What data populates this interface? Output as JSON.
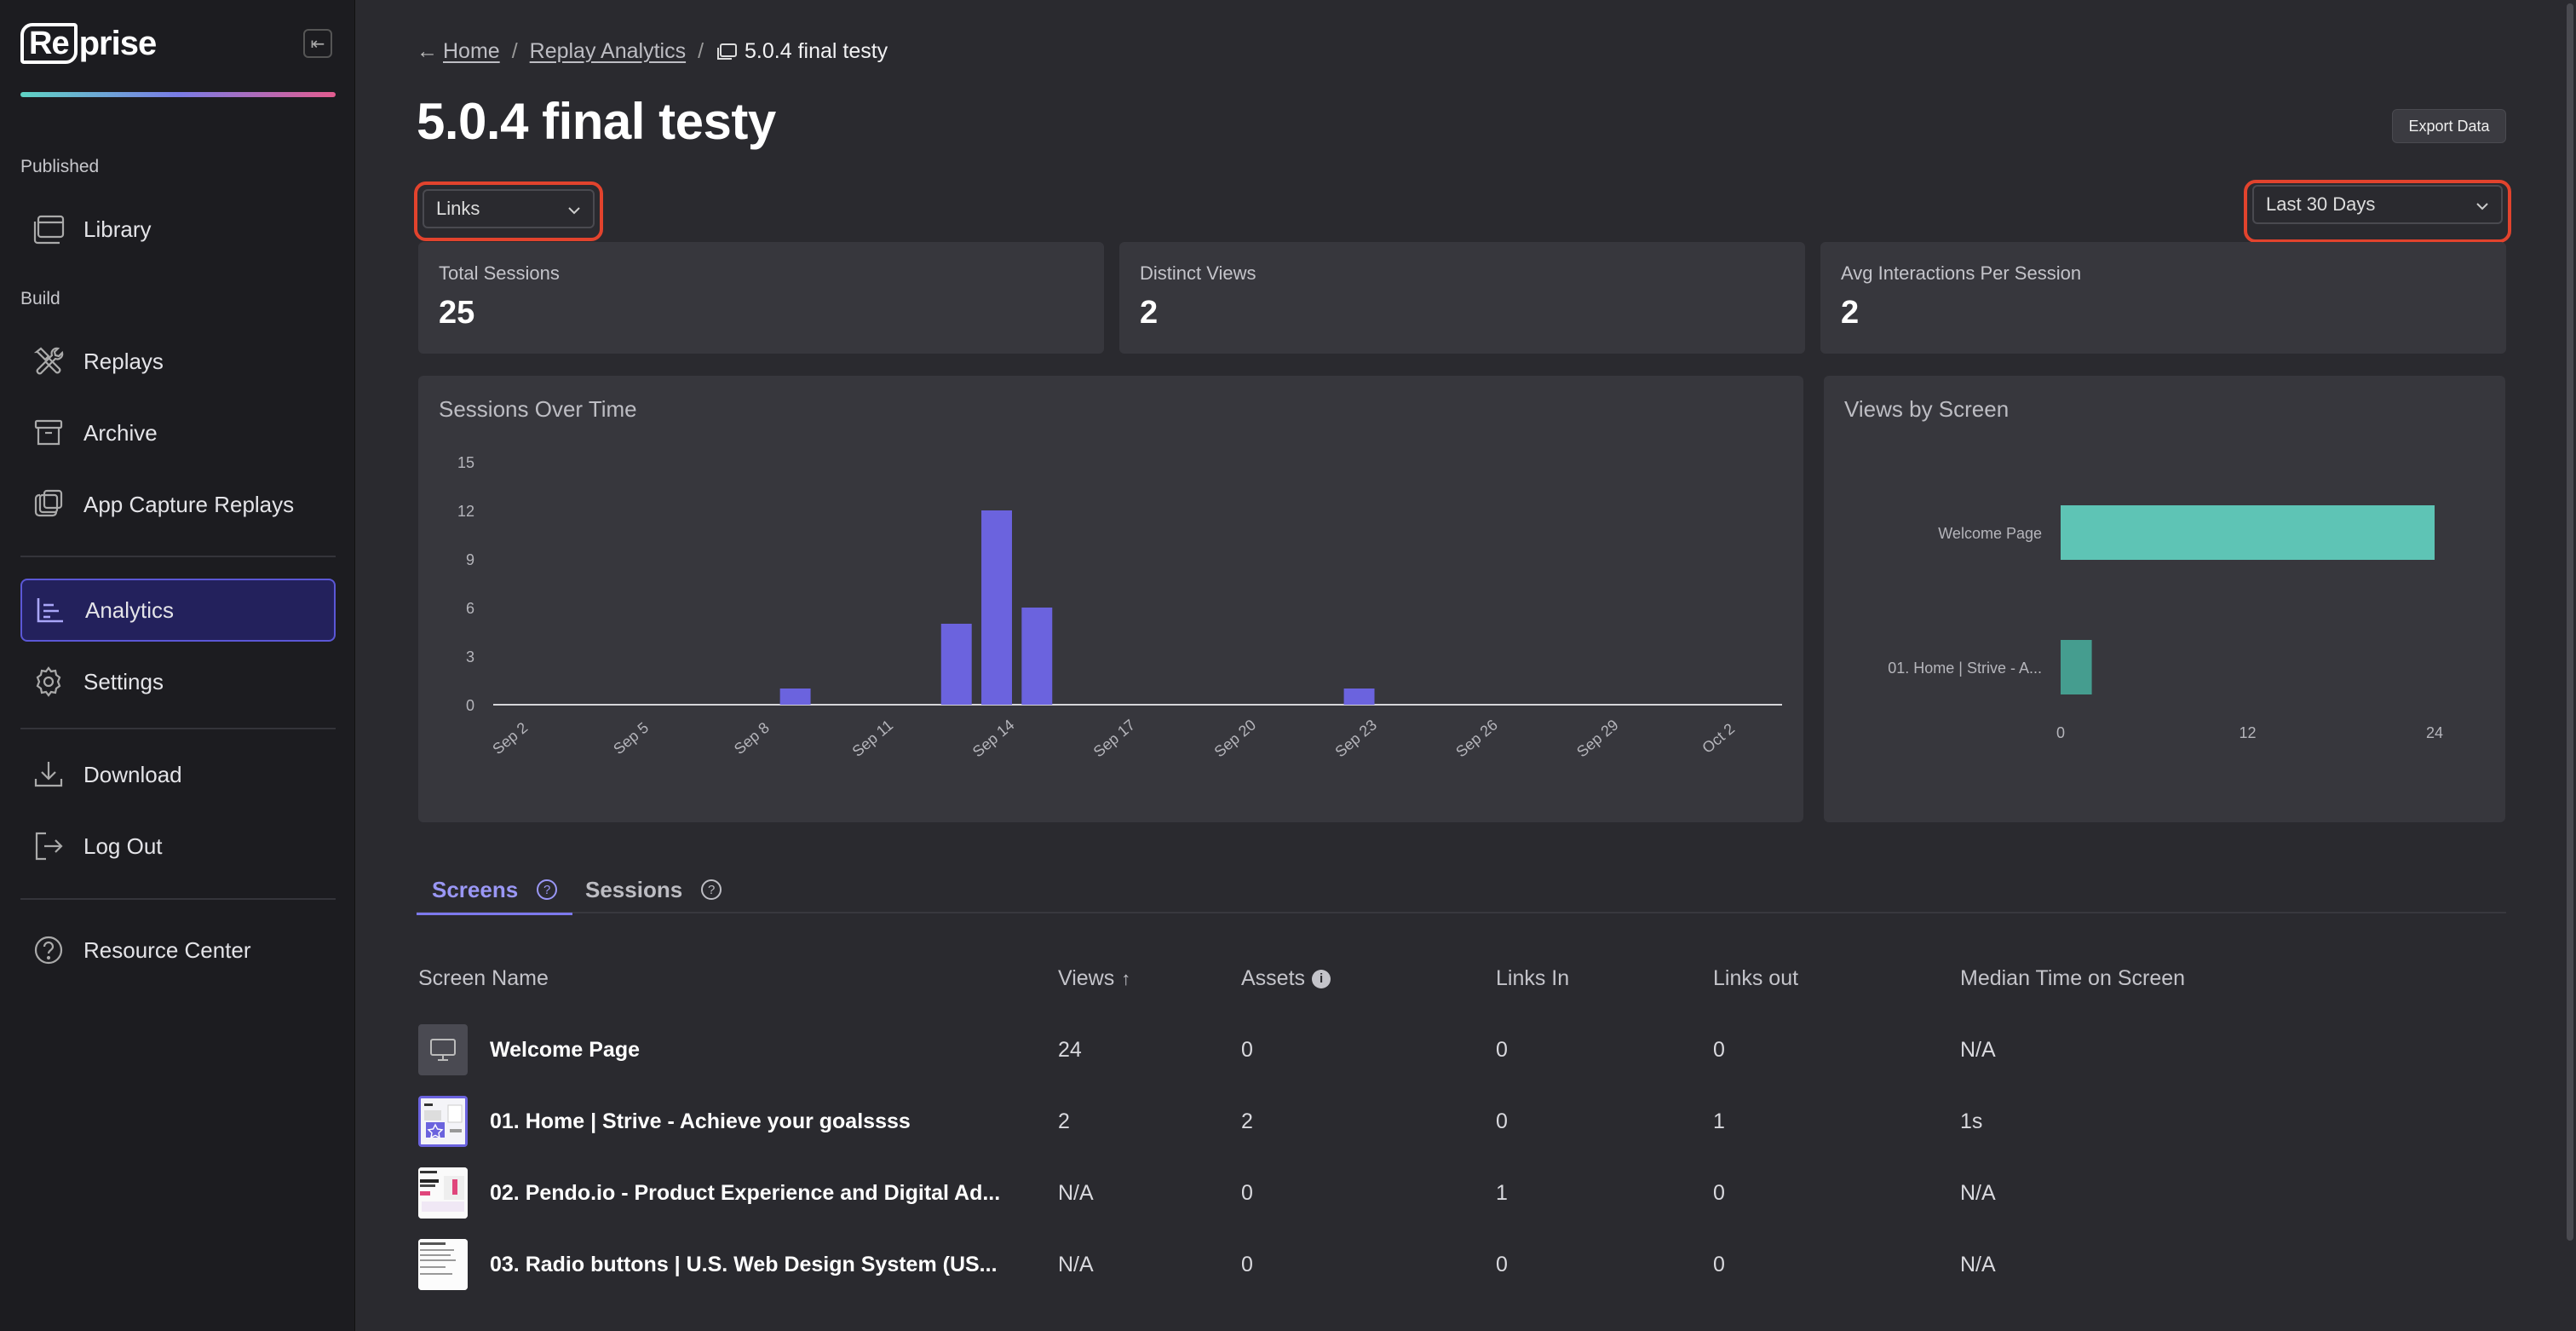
{
  "app": {
    "logo_text_boxed": "Re",
    "logo_text": "prise",
    "accent": "#7a7ce6",
    "highlight_color": "#e2432d"
  },
  "sidebar": {
    "published_label": "Published",
    "build_label": "Build",
    "items": [
      {
        "label": "Library",
        "icon": "library-icon"
      },
      {
        "label": "Replays",
        "icon": "tools-icon"
      },
      {
        "label": "Archive",
        "icon": "archive-icon"
      },
      {
        "label": "App Capture Replays",
        "icon": "layers-icon"
      },
      {
        "label": "Analytics",
        "icon": "bar-chart-icon",
        "active": true
      },
      {
        "label": "Settings",
        "icon": "gear-icon"
      },
      {
        "label": "Download",
        "icon": "download-icon"
      },
      {
        "label": "Log Out",
        "icon": "logout-icon"
      },
      {
        "label": "Resource Center",
        "icon": "help-circle-icon"
      }
    ]
  },
  "breadcrumb": {
    "arrow": "←",
    "home": "Home",
    "sep1": "/",
    "analytics": "Replay Analytics",
    "sep2": "/",
    "current": "5.0.4 final testy"
  },
  "page": {
    "title": "5.0.4 final testy",
    "export_label": "Export Data"
  },
  "filters": {
    "type_value": "Links",
    "range_value": "Last 30 Days"
  },
  "stats": [
    {
      "label": "Total Sessions",
      "value": "25"
    },
    {
      "label": "Distinct Views",
      "value": "2"
    },
    {
      "label": "Avg Interactions Per Session",
      "value": "2"
    }
  ],
  "chart_data": [
    {
      "type": "bar",
      "title": "Sessions Over Time",
      "bar_color": "#6b63de",
      "categories": [
        "Sep 2",
        "Sep 3",
        "Sep 4",
        "Sep 5",
        "Sep 6",
        "Sep 7",
        "Sep 8",
        "Sep 9",
        "Sep 10",
        "Sep 11",
        "Sep 12",
        "Sep 13",
        "Sep 14",
        "Sep 15",
        "Sep 16",
        "Sep 17",
        "Sep 18",
        "Sep 19",
        "Sep 20",
        "Sep 21",
        "Sep 22",
        "Sep 23",
        "Sep 24",
        "Sep 25",
        "Sep 26",
        "Sep 27",
        "Sep 28",
        "Sep 29",
        "Sep 30",
        "Oct 1",
        "Oct 2",
        "Oct 3"
      ],
      "values": [
        0,
        0,
        0,
        0,
        0,
        0,
        0,
        1,
        0,
        0,
        0,
        5,
        12,
        6,
        0,
        0,
        0,
        0,
        0,
        0,
        0,
        1,
        0,
        0,
        0,
        0,
        0,
        0,
        0,
        0,
        0,
        0
      ],
      "x_tick_labels": [
        "Sep 2",
        "Sep 5",
        "Sep 8",
        "Sep 11",
        "Sep 14",
        "Sep 17",
        "Sep 20",
        "Sep 23",
        "Sep 26",
        "Sep 29",
        "Oct 2"
      ],
      "y_ticks": [
        "15",
        "12",
        "9",
        "6",
        "3",
        "0"
      ],
      "ylim": [
        0,
        15
      ]
    },
    {
      "type": "bar",
      "orientation": "horizontal",
      "title": "Views by Screen",
      "categories": [
        "Welcome Page",
        "01. Home | Strive - A..."
      ],
      "values": [
        24,
        2
      ],
      "colors": [
        "#5ec4b5",
        "#459d8f"
      ],
      "x_ticks": [
        "0",
        "12",
        "24"
      ],
      "xlim": [
        0,
        24
      ]
    }
  ],
  "tabs": [
    {
      "label": "Screens",
      "active": true
    },
    {
      "label": "Sessions",
      "active": false
    }
  ],
  "tab_help": "?",
  "table": {
    "headers": [
      "Screen Name",
      "Views",
      "Assets",
      "Links In",
      "Links out",
      "Median Time on Screen"
    ],
    "sort_arrow": "↑",
    "info_glyph": "i",
    "rows": [
      {
        "name": "Welcome Page",
        "views": "24",
        "assets": "0",
        "links_in": "0",
        "links_out": "0",
        "median": "N/A",
        "thumb": "monitor-icon"
      },
      {
        "name": "01. Home | Strive - Achieve your goalssss",
        "views": "2",
        "assets": "2",
        "links_in": "0",
        "links_out": "1",
        "median": "1s",
        "thumb": "screenshot-thumbnail"
      },
      {
        "name": "02. Pendo.io - Product Experience and Digital Ad...",
        "views": "N/A",
        "assets": "0",
        "links_in": "1",
        "links_out": "0",
        "median": "N/A",
        "thumb": "screenshot-thumbnail"
      },
      {
        "name": "03. Radio buttons | U.S. Web Design System (US...",
        "views": "N/A",
        "assets": "0",
        "links_in": "0",
        "links_out": "0",
        "median": "N/A",
        "thumb": "screenshot-thumbnail"
      }
    ]
  }
}
